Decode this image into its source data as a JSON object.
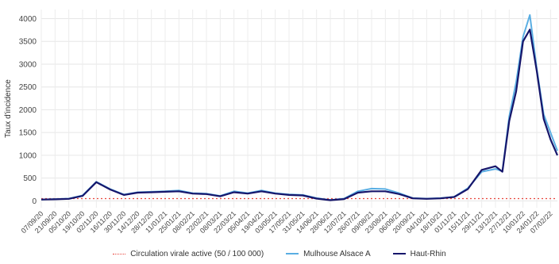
{
  "chart_data": {
    "type": "line",
    "ylabel": "Taux d'incidence",
    "xlabel": "",
    "ylim": [
      -150,
      4200
    ],
    "yticks": [
      0,
      500,
      1000,
      1500,
      2000,
      2500,
      3000,
      3500,
      4000
    ],
    "xticks": [
      "07/09/20",
      "21/09/20",
      "05/10/20",
      "19/10/20",
      "02/11/20",
      "16/11/20",
      "30/11/20",
      "14/12/20",
      "28/12/20",
      "11/01/21",
      "25/01/21",
      "08/02/21",
      "22/02/21",
      "08/03/21",
      "22/03/21",
      "05/04/21",
      "19/04/21",
      "03/05/21",
      "17/05/21",
      "31/05/21",
      "14/06/21",
      "28/06/21",
      "12/07/21",
      "26/07/21",
      "09/08/21",
      "23/08/21",
      "06/09/21",
      "20/09/21",
      "04/10/21",
      "18/10/21",
      "01/11/21",
      "15/11/21",
      "29/11/21",
      "13/12/21",
      "27/12/21",
      "10/01/22",
      "24/01/22",
      "07/02/22"
    ],
    "x": [
      "07/09/20",
      "21/09/20",
      "05/10/20",
      "19/10/20",
      "02/11/20",
      "16/11/20",
      "30/11/20",
      "14/12/20",
      "28/12/20",
      "11/01/21",
      "25/01/21",
      "08/02/21",
      "22/02/21",
      "08/03/21",
      "22/03/21",
      "05/04/21",
      "19/04/21",
      "03/05/21",
      "17/05/21",
      "31/05/21",
      "14/06/21",
      "28/06/21",
      "12/07/21",
      "26/07/21",
      "09/08/21",
      "23/08/21",
      "06/09/21",
      "20/09/21",
      "04/10/21",
      "18/10/21",
      "01/11/21",
      "15/11/21",
      "29/11/21",
      "13/12/21",
      "20/12/21",
      "27/12/21",
      "03/01/22",
      "10/01/22",
      "17/01/22",
      "24/01/22",
      "31/01/22",
      "07/02/22",
      "14/02/22"
    ],
    "threshold": {
      "name": "Circulation virale active (50 / 100 000)",
      "value": 50,
      "color": "#e8453c"
    },
    "series": [
      {
        "name": "Mulhouse Alsace A",
        "color": "#5aaee3",
        "values": [
          30,
          40,
          50,
          120,
          420,
          260,
          140,
          190,
          200,
          210,
          230,
          170,
          160,
          110,
          210,
          170,
          230,
          170,
          140,
          130,
          60,
          20,
          50,
          210,
          270,
          260,
          170,
          60,
          50,
          60,
          90,
          280,
          640,
          700,
          650,
          1850,
          2600,
          3600,
          4080,
          2900,
          1900,
          1500,
          1100
        ]
      },
      {
        "name": "Haut-Rhin",
        "color": "#16166b",
        "values": [
          30,
          35,
          45,
          110,
          410,
          250,
          130,
          180,
          190,
          200,
          210,
          160,
          150,
          100,
          190,
          160,
          210,
          160,
          130,
          120,
          50,
          15,
          40,
          180,
          210,
          210,
          150,
          55,
          45,
          55,
          85,
          260,
          680,
          760,
          640,
          1750,
          2400,
          3500,
          3760,
          2850,
          1800,
          1350,
          1000
        ]
      }
    ]
  }
}
